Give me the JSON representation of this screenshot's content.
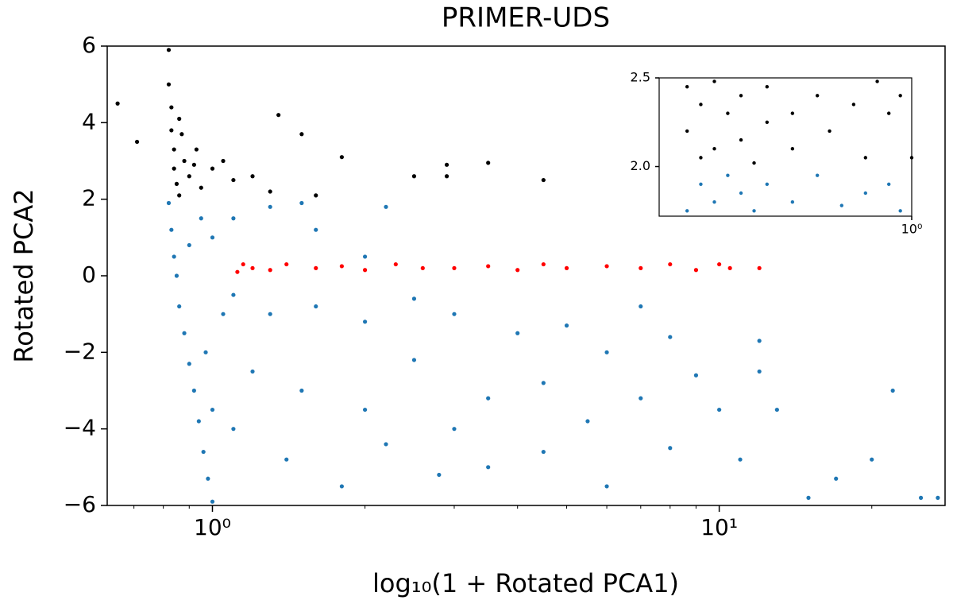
{
  "chart_data": [
    {
      "type": "scatter",
      "title": "PRIMER-UDS",
      "xlabel": "log₁₀(1 + Rotated PCA1)",
      "ylabel": "Rotated PCA2",
      "xscale": "log",
      "xlim": [
        0.62,
        27.9
      ],
      "ylim": [
        -6,
        6
      ],
      "xticks": [
        {
          "value": 1,
          "label": "10⁰"
        },
        {
          "value": 10,
          "label": "10¹"
        }
      ],
      "xminorticks": [
        0.7,
        0.8,
        0.9,
        2,
        3,
        4,
        5,
        6,
        7,
        8,
        9,
        20
      ],
      "yticks": [
        {
          "value": -6,
          "label": "−6"
        },
        {
          "value": -4,
          "label": "−4"
        },
        {
          "value": -2,
          "label": "−2"
        },
        0,
        2,
        4,
        6
      ],
      "grid": false,
      "series": [
        {
          "color": "#1f77b4",
          "x": [
            0.82,
            0.83,
            0.84,
            0.85,
            0.86,
            0.88,
            0.9,
            0.92,
            0.94,
            0.96,
            0.98,
            1.0,
            0.9,
            1.0,
            1.1,
            1.3,
            1.5,
            0.95,
            1.1,
            1.3,
            1.6,
            2.0,
            2.5,
            3,
            4,
            5,
            6,
            7,
            8,
            1.2,
            1.5,
            2,
            2.5,
            3,
            3.5,
            4.5,
            5.5,
            7,
            9,
            10,
            1.1,
            1.4,
            1.8,
            2.2,
            2.8,
            3.5,
            4.5,
            6,
            8,
            11,
            13,
            15,
            20,
            22,
            25,
            27,
            1.0,
            0.97,
            1.05,
            1.6,
            2.2,
            2.0,
            12,
            12,
            17
          ],
          "values": [
            1.9,
            1.2,
            0.5,
            0,
            -0.8,
            -1.5,
            -2.3,
            -3,
            -3.8,
            -4.6,
            -5.3,
            -5.9,
            0.8,
            1.0,
            1.5,
            1.8,
            1.9,
            1.5,
            -0.5,
            -1,
            -0.8,
            -1.2,
            -0.6,
            -1,
            -1.5,
            -1.3,
            -2,
            -0.8,
            -1.6,
            -2.5,
            -3,
            -3.5,
            -2.2,
            -4,
            -3.2,
            -2.8,
            -3.8,
            -3.2,
            -2.6,
            -3.5,
            -4,
            -4.8,
            -5.5,
            -4.4,
            -5.2,
            -5,
            -4.6,
            -5.5,
            -4.5,
            -4.8,
            -3.5,
            -5.8,
            -4.8,
            -3,
            -5.8,
            -5.8,
            -3.5,
            -2,
            -1,
            1.2,
            1.8,
            0.5,
            -1.7,
            -2.5,
            -5.3
          ]
        },
        {
          "color": "#000000",
          "x": [
            0.65,
            0.71,
            0.82,
            0.82,
            0.83,
            0.83,
            0.84,
            0.84,
            0.85,
            0.86,
            0.88,
            0.9,
            0.93,
            0.95,
            1.0,
            1.05,
            1.1,
            1.2,
            1.3,
            1.35,
            1.5,
            1.6,
            1.8,
            2.5,
            2.9,
            2.9,
            3.5,
            4.5,
            0.87,
            0.92,
            0.86
          ],
          "values": [
            4.5,
            3.5,
            5.9,
            5,
            4.4,
            3.8,
            3.3,
            2.8,
            2.4,
            2.1,
            3,
            2.6,
            3.3,
            2.3,
            2.8,
            3,
            2.5,
            2.6,
            2.2,
            4.2,
            3.7,
            2.1,
            3.1,
            2.6,
            2.9,
            2.6,
            2.95,
            2.5,
            3.7,
            2.9,
            4.1
          ]
        },
        {
          "color": "#ff0000",
          "x": [
            1.12,
            1.15,
            1.2,
            1.3,
            1.4,
            1.6,
            1.8,
            2.0,
            2.3,
            2.6,
            3.0,
            3.5,
            4,
            4.5,
            5,
            6,
            7,
            8,
            9,
            10,
            10.5,
            12
          ],
          "values": [
            0.1,
            0.3,
            0.2,
            0.15,
            0.3,
            0.2,
            0.25,
            0.15,
            0.3,
            0.2,
            0.2,
            0.25,
            0.15,
            0.3,
            0.2,
            0.25,
            0.2,
            0.3,
            0.15,
            0.3,
            0.2,
            0.2
          ]
        }
      ]
    },
    {
      "type": "scatter",
      "xscale": "log",
      "xlim": [
        0.8,
        1.0
      ],
      "ylim": [
        1.72,
        2.5
      ],
      "xticks": [
        {
          "value": 1,
          "label": "10⁰"
        }
      ],
      "yticks": [
        {
          "value": 2,
          "label": "2.0"
        },
        {
          "value": 2.5,
          "label": "2.5"
        }
      ],
      "grid": false,
      "series": [
        {
          "color": "#000000",
          "x": [
            0.82,
            0.82,
            0.83,
            0.83,
            0.84,
            0.84,
            0.85,
            0.86,
            0.86,
            0.87,
            0.88,
            0.88,
            0.9,
            0.9,
            0.92,
            0.93,
            0.95,
            0.96,
            0.98,
            0.99,
            1.0,
            0.97
          ],
          "values": [
            2.45,
            2.2,
            2.05,
            2.35,
            2.1,
            2.48,
            2.3,
            2.15,
            2.4,
            2.02,
            2.25,
            2.45,
            2.3,
            2.1,
            2.4,
            2.2,
            2.35,
            2.05,
            2.3,
            2.4,
            2.05,
            2.48
          ]
        },
        {
          "color": "#1f77b4",
          "x": [
            0.82,
            0.83,
            0.84,
            0.85,
            0.86,
            0.87,
            0.88,
            0.9,
            0.92,
            0.94,
            0.96,
            0.98,
            0.99
          ],
          "values": [
            1.75,
            1.9,
            1.8,
            1.95,
            1.85,
            1.75,
            1.9,
            1.8,
            1.95,
            1.78,
            1.85,
            1.9,
            1.75
          ]
        }
      ]
    }
  ]
}
